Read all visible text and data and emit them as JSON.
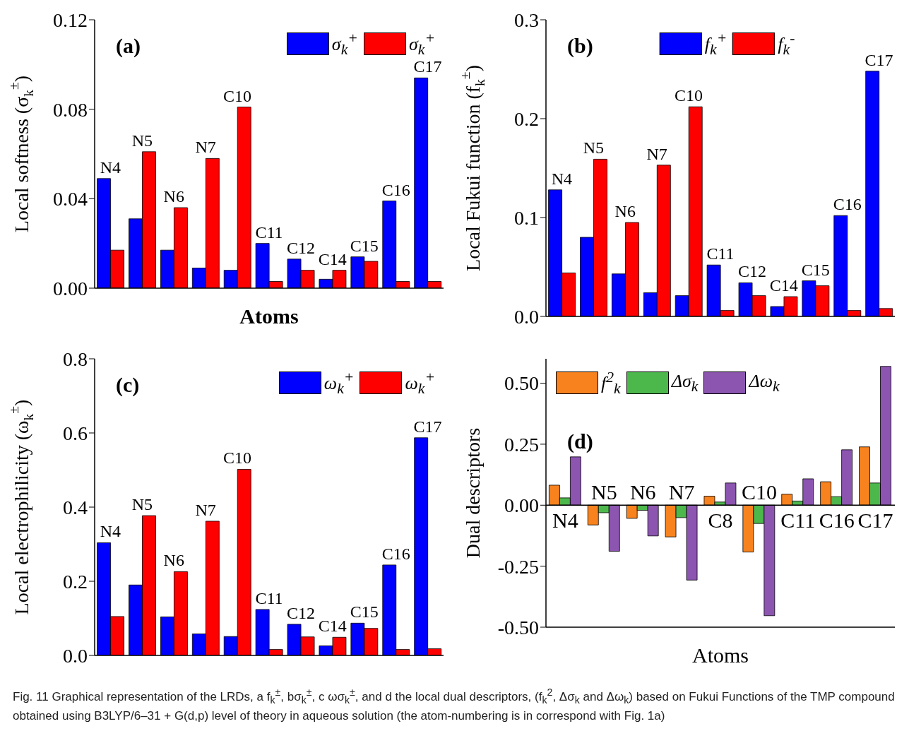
{
  "chart_data": [
    {
      "type": "bar",
      "ylabel": "Local softness (σ$_{k}$$^{±}$)",
      "xlabel": "Atoms",
      "categories": [
        "N4",
        "N5",
        "N6",
        "N7",
        "C10",
        "C11",
        "C12",
        "C14",
        "C15",
        "C16",
        "C17"
      ],
      "series": [
        {
          "name": "σ$_{k}$$^{+}$",
          "color": "#0000ff",
          "values": [
            0.049,
            0.031,
            0.017,
            0.009,
            0.008,
            0.02,
            0.013,
            0.004,
            0.014,
            0.039,
            0.094
          ]
        },
        {
          "name": "σ$_{k}$$^{+}$",
          "color": "#ff0000",
          "values": [
            0.017,
            0.061,
            0.036,
            0.058,
            0.081,
            0.003,
            0.008,
            0.008,
            0.012,
            0.003,
            0.003
          ]
        }
      ],
      "ylim": [
        0,
        0.12
      ],
      "yticks": [
        {
          "value": 0,
          "label": "0.00"
        },
        {
          "value": 0.04,
          "label": "0.04"
        },
        {
          "value": 0.08,
          "label": "0.08"
        },
        {
          "value": 0.12,
          "label": "0.12"
        }
      ],
      "legend": "top right",
      "tick_labels": "y",
      "annotations": [
        "(a)"
      ]
    },
    {
      "type": "bar",
      "ylabel": "Local Fukui function (f$_{k}$$^{±}$)",
      "categories": [
        "N4",
        "N5",
        "N6",
        "N7",
        "C10",
        "C11",
        "C12",
        "C14",
        "C15",
        "C16",
        "C17"
      ],
      "series": [
        {
          "name": "f$_{k}$$^{+}$",
          "color": "#0000ff",
          "values": [
            0.128,
            0.08,
            0.043,
            0.024,
            0.021,
            0.052,
            0.034,
            0.01,
            0.036,
            0.102,
            0.248
          ]
        },
        {
          "name": "f$_{k}$$^{-}$",
          "color": "#ff0000",
          "values": [
            0.044,
            0.159,
            0.095,
            0.153,
            0.212,
            0.006,
            0.021,
            0.02,
            0.031,
            0.006,
            0.008
          ]
        }
      ],
      "ylim": [
        0,
        0.3
      ],
      "yticks": [
        {
          "value": 0,
          "label": "0.0"
        },
        0.1,
        0.2,
        0.3
      ],
      "legend": "top",
      "tick_labels": "y",
      "annotations": [
        "(b)"
      ]
    },
    {
      "type": "bar",
      "ylabel": "Local electrophilicity (ω$_{k}$$^{±}$)",
      "categories": [
        "N4",
        "N5",
        "N6",
        "N7",
        "C10",
        "C11",
        "C12",
        "C14",
        "C15",
        "C16",
        "C17"
      ],
      "series": [
        {
          "name": "ω$_{k}$$^{+}$",
          "color": "#0000ff",
          "values": [
            0.304,
            0.19,
            0.104,
            0.058,
            0.051,
            0.124,
            0.084,
            0.026,
            0.087,
            0.244,
            0.587
          ]
        },
        {
          "name": "ω$_{k}$$^{+}$",
          "color": "#ff0000",
          "values": [
            0.105,
            0.377,
            0.226,
            0.362,
            0.502,
            0.016,
            0.05,
            0.049,
            0.073,
            0.016,
            0.018
          ]
        }
      ],
      "ylim": [
        0,
        0.8
      ],
      "yticks": [
        {
          "value": 0,
          "label": "0.0"
        },
        0.2,
        0.4,
        0.6,
        0.8
      ],
      "legend": "top right",
      "tick_labels": "y",
      "annotations": [
        "(c)"
      ]
    },
    {
      "type": "bar",
      "ylabel": "Dual descriptors",
      "xlabel": "Atoms",
      "categories": [
        "N4",
        "N5",
        "N6",
        "N7",
        "C8",
        "C10",
        "C11",
        "C16",
        "C17"
      ],
      "series": [
        {
          "name": "f$^{2}$$_{k}$",
          "color": "#f7821e",
          "values": [
            0.082,
            -0.081,
            -0.054,
            -0.13,
            0.037,
            -0.192,
            0.045,
            0.096,
            0.239
          ]
        },
        {
          "name": "Δσ$_{k}$",
          "color": "#4cb84c",
          "values": [
            0.03,
            -0.031,
            -0.021,
            -0.051,
            0.013,
            -0.075,
            0.017,
            0.035,
            0.091
          ]
        },
        {
          "name": "Δω$_{k}$",
          "color": "#8c55b0",
          "values": [
            0.198,
            -0.189,
            -0.126,
            -0.307,
            0.091,
            -0.453,
            0.108,
            0.227,
            0.569
          ]
        }
      ],
      "ylim": [
        -0.5,
        0.6
      ],
      "yticks": [
        {
          "value": -0.5,
          "label": "-0.50"
        },
        {
          "value": -0.25,
          "label": "-0.25"
        },
        {
          "value": 0,
          "label": "0.00"
        },
        {
          "value": 0.25,
          "label": "0.25"
        },
        {
          "value": 0.5,
          "label": "0.50"
        }
      ],
      "ref_lines": [
        {
          "axis": "y",
          "value": 0
        }
      ],
      "legend": "top left",
      "tick_labels": "y",
      "annotations": [
        "(d)",
        "Fig. 11 Graphical representation of the LRDs, a f$_{k}$$^{±}$, bσ$_{k}$$^{±}$, c ωσ$_{k}$$^{±}$, and d the local dual descriptors, (f$_{k}$$^{2}$, Δσ$_{k}$ and Δω$_{k}$) based on Fukui Functions of the TMP compound obtained using B3LYP/6–31 + G(d,p) level of theory in aqueous solution (the atom-numbering is in correspond with Fig. 1a)"
      ]
    }
  ]
}
